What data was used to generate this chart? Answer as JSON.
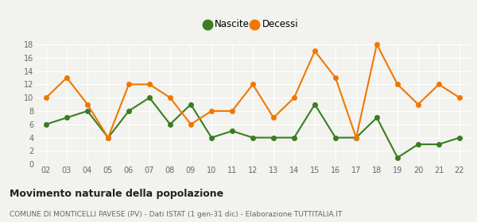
{
  "years": [
    2,
    3,
    4,
    5,
    6,
    7,
    8,
    9,
    10,
    11,
    12,
    13,
    14,
    15,
    16,
    17,
    18,
    19,
    20,
    21,
    22
  ],
  "nascite": [
    6,
    7,
    8,
    4,
    8,
    10,
    6,
    9,
    4,
    5,
    4,
    4,
    4,
    9,
    4,
    4,
    7,
    1,
    3,
    3,
    4
  ],
  "decessi": [
    10,
    13,
    9,
    4,
    12,
    12,
    10,
    6,
    8,
    8,
    12,
    7,
    10,
    17,
    13,
    4,
    18,
    12,
    9,
    12,
    10
  ],
  "nascite_color": "#3a7d22",
  "decessi_color": "#f07800",
  "ylim": [
    0,
    18
  ],
  "yticks": [
    0,
    2,
    4,
    6,
    8,
    10,
    12,
    14,
    16,
    18
  ],
  "xlabel_labels": [
    "02",
    "03",
    "04",
    "05",
    "06",
    "07",
    "08",
    "09",
    "10",
    "11",
    "12",
    "13",
    "14",
    "15",
    "16",
    "17",
    "18",
    "19",
    "20",
    "21",
    "22"
  ],
  "title_main": "Movimento naturale della popolazione",
  "title_sub": "COMUNE DI MONTICELLI PAVESE (PV) - Dati ISTAT (1 gen-31 dic) - Elaborazione TUTTITALIA.IT",
  "legend_nascite": "Nascite",
  "legend_decessi": "Decessi",
  "background_color": "#f2f2ee",
  "grid_color": "#ffffff",
  "marker_size": 4,
  "line_width": 1.5
}
